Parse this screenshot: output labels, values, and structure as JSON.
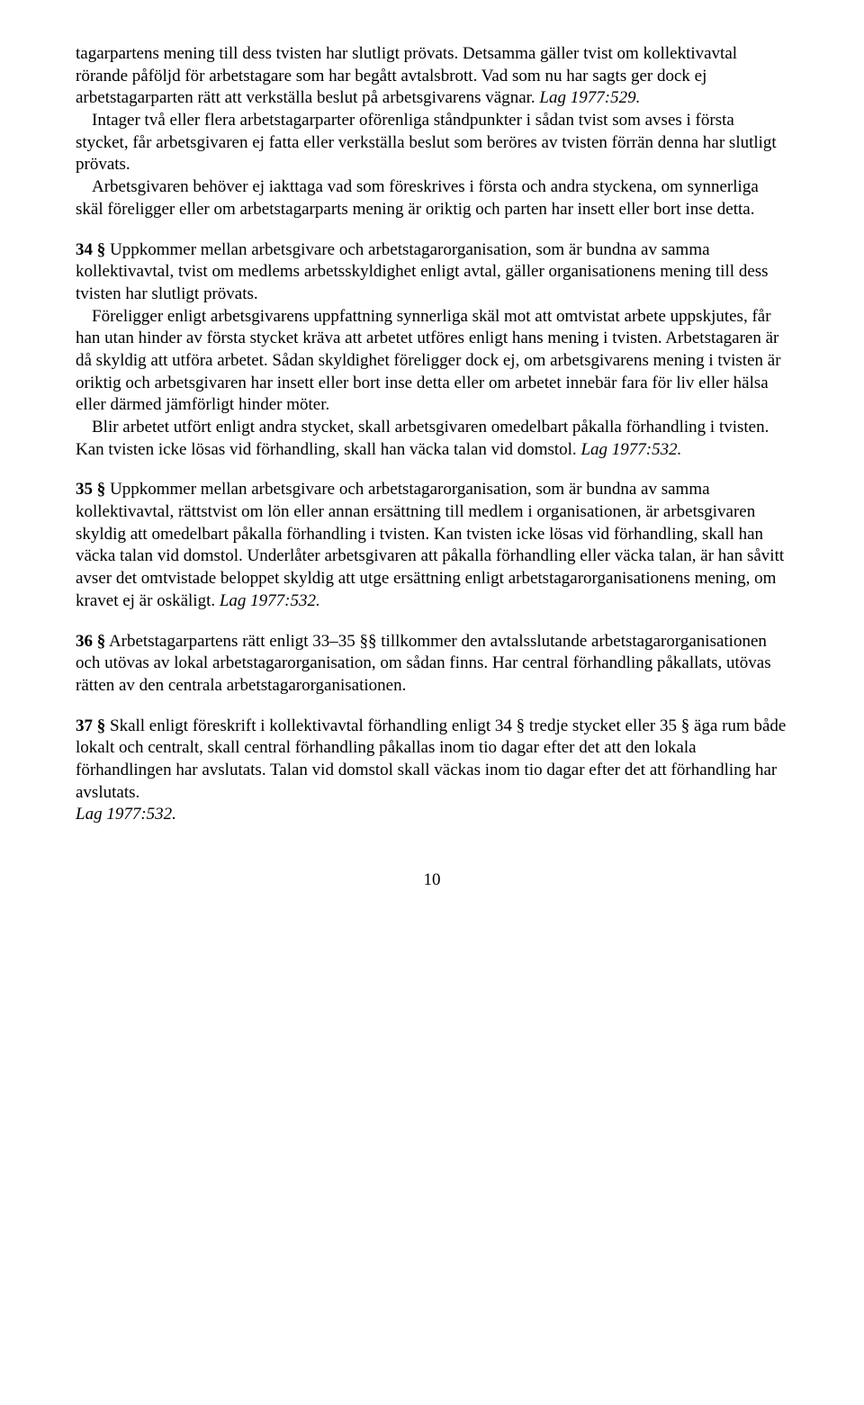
{
  "paragraphs": {
    "p1a": "tagarpartens mening till dess tvisten har slutligt prövats. Detsamma gäller tvist om kollektivavtal rörande påföljd för arbetstagare som har begått avtalsbrott. Vad som nu har sagts ger dock ej arbetstagarparten rätt att verkställa beslut på arbetsgivarens vägnar. ",
    "p1a_law": "Lag 1977:529.",
    "p1b": "Intager två eller flera arbetstagarparter oförenliga ståndpunkter i sådan tvist som avses i första stycket, får arbetsgivaren ej fatta eller verkställa beslut som beröres av tvisten förrän denna har slutligt prövats.",
    "p1c": "Arbetsgivaren behöver ej iakttaga vad som föreskrives i första och andra styckena, om synnerliga skäl föreligger eller om arbetstagarparts mening är oriktig och parten har insett eller bort inse detta.",
    "s34_num": "34 §",
    "s34a": "   Uppkommer mellan arbetsgivare och arbetstagarorganisation, som är bundna av samma kollektivavtal, tvist om medlems arbetsskyldighet enligt avtal, gäller organisationens mening till dess tvisten har slutligt prövats.",
    "s34b": "Föreligger enligt arbetsgivarens uppfattning synnerliga skäl mot att omtvistat arbete uppskjutes, får han utan hinder av första stycket kräva att arbetet utföres enligt hans mening i tvisten. Arbetstagaren är då skyldig att utföra arbetet. Sådan skyldighet föreligger dock ej, om arbetsgivarens mening i tvisten är oriktig och arbetsgivaren har insett eller bort inse detta eller om arbetet innebär fara för liv eller hälsa eller därmed jämförligt hinder möter.",
    "s34c": "Blir arbetet utfört enligt andra stycket, skall arbetsgivaren omedelbart påkalla förhandling i tvisten. Kan tvisten icke lösas vid förhandling, skall han väcka talan vid domstol. ",
    "s34c_law": "Lag 1977:532.",
    "s35_num": "35 §",
    "s35a": "   Uppkommer mellan arbetsgivare och arbetstagarorganisation, som är bundna av samma kollektivavtal, rättstvist om lön eller annan ersättning till medlem i organisationen, är arbetsgivaren skyldig att omedelbart påkalla förhandling i tvisten. Kan tvisten icke lösas vid förhandling, skall han väcka talan vid domstol. Underlåter arbetsgivaren att påkalla förhandling eller väcka talan, är han såvitt avser det omtvistade beloppet skyldig att utge ersättning enligt arbetstagarorganisationens mening, om kravet ej är oskäligt. ",
    "s35a_law": "Lag 1977:532.",
    "s36_num": "36 §",
    "s36a": "   Arbetstagarpartens rätt enligt 33–35 §§ tillkommer den avtalsslutande arbetstagarorganisationen och utövas av lokal arbetstagarorganisation, om sådan finns. Har central förhandling påkallats, utövas rätten av den centrala arbetstagarorganisationen.",
    "s37_num": "37 §",
    "s37a": "   Skall enligt föreskrift i kollektivavtal förhandling enligt 34 § tredje stycket eller 35 § äga rum både lokalt och centralt, skall central förhandling påkallas inom tio dagar efter det att den lokala förhandlingen har avslutats. Talan vid domstol skall väckas inom tio dagar efter det att förhandling har avslutats.",
    "s37a_law": "Lag 1977:532."
  },
  "page_number": "10"
}
